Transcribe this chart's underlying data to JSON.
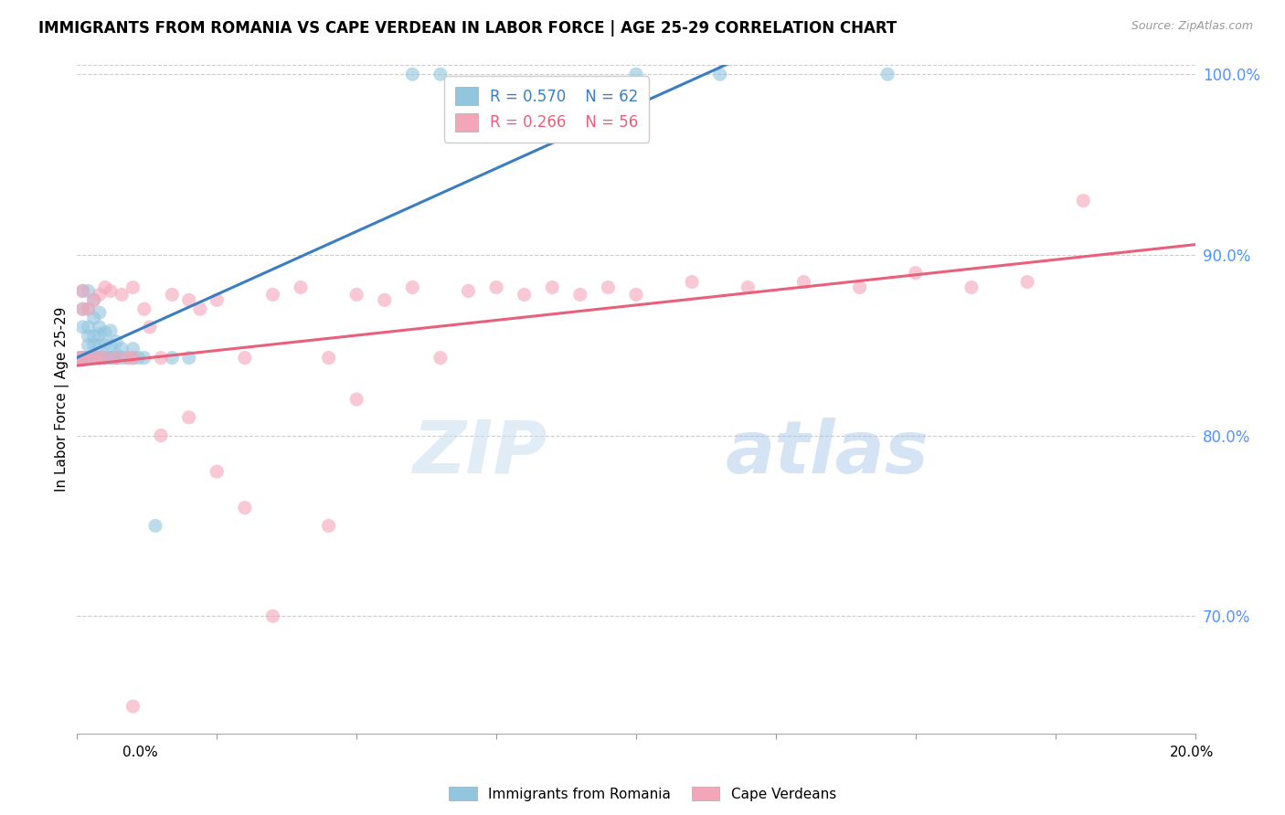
{
  "title": "IMMIGRANTS FROM ROMANIA VS CAPE VERDEAN IN LABOR FORCE | AGE 25-29 CORRELATION CHART",
  "source": "Source: ZipAtlas.com",
  "ylabel": "In Labor Force | Age 25-29",
  "xlim": [
    0.0,
    0.2
  ],
  "ylim": [
    0.635,
    1.005
  ],
  "y_tick_vals": [
    0.7,
    0.8,
    0.9,
    1.0
  ],
  "y_tick_labels": [
    "70.0%",
    "80.0%",
    "90.0%",
    "100.0%"
  ],
  "blue_color": "#92c5de",
  "pink_color": "#f4a6b8",
  "trend_blue": "#3a7ebf",
  "trend_pink": "#e8607a",
  "watermark_zip": "ZIP",
  "watermark_atlas": "atlas",
  "romania_x": [
    0.0005,
    0.0005,
    0.001,
    0.001,
    0.001,
    0.001,
    0.001,
    0.001,
    0.001,
    0.002,
    0.002,
    0.002,
    0.002,
    0.002,
    0.002,
    0.002,
    0.002,
    0.002,
    0.002,
    0.003,
    0.003,
    0.003,
    0.003,
    0.003,
    0.003,
    0.003,
    0.003,
    0.004,
    0.004,
    0.004,
    0.004,
    0.004,
    0.004,
    0.004,
    0.005,
    0.005,
    0.005,
    0.005,
    0.005,
    0.006,
    0.006,
    0.006,
    0.006,
    0.007,
    0.007,
    0.007,
    0.007,
    0.008,
    0.008,
    0.009,
    0.01,
    0.01,
    0.011,
    0.012,
    0.014,
    0.017,
    0.02,
    0.06,
    0.065,
    0.1,
    0.115,
    0.145
  ],
  "romania_y": [
    0.843,
    0.843,
    0.843,
    0.843,
    0.843,
    0.843,
    0.86,
    0.87,
    0.88,
    0.843,
    0.843,
    0.843,
    0.843,
    0.843,
    0.85,
    0.855,
    0.86,
    0.87,
    0.88,
    0.843,
    0.843,
    0.843,
    0.843,
    0.85,
    0.855,
    0.865,
    0.875,
    0.843,
    0.843,
    0.843,
    0.85,
    0.856,
    0.86,
    0.868,
    0.843,
    0.843,
    0.843,
    0.85,
    0.857,
    0.843,
    0.843,
    0.85,
    0.858,
    0.843,
    0.843,
    0.845,
    0.852,
    0.843,
    0.848,
    0.843,
    0.843,
    0.848,
    0.843,
    0.843,
    0.75,
    0.843,
    0.843,
    1.0,
    1.0,
    1.0,
    1.0,
    1.0
  ],
  "cape_x": [
    0.0005,
    0.001,
    0.001,
    0.001,
    0.002,
    0.002,
    0.003,
    0.003,
    0.004,
    0.004,
    0.005,
    0.005,
    0.006,
    0.007,
    0.008,
    0.009,
    0.01,
    0.01,
    0.012,
    0.013,
    0.015,
    0.017,
    0.02,
    0.022,
    0.025,
    0.03,
    0.035,
    0.04,
    0.045,
    0.05,
    0.055,
    0.06,
    0.065,
    0.07,
    0.075,
    0.08,
    0.085,
    0.09,
    0.095,
    0.1,
    0.11,
    0.12,
    0.13,
    0.14,
    0.15,
    0.16,
    0.17,
    0.18,
    0.015,
    0.02,
    0.025,
    0.03,
    0.035,
    0.045,
    0.01,
    0.05
  ],
  "cape_y": [
    0.843,
    0.87,
    0.843,
    0.88,
    0.87,
    0.843,
    0.875,
    0.843,
    0.878,
    0.843,
    0.882,
    0.843,
    0.88,
    0.843,
    0.878,
    0.843,
    0.882,
    0.843,
    0.87,
    0.86,
    0.843,
    0.878,
    0.875,
    0.87,
    0.875,
    0.843,
    0.878,
    0.882,
    0.843,
    0.878,
    0.875,
    0.882,
    0.843,
    0.88,
    0.882,
    0.878,
    0.882,
    0.878,
    0.882,
    0.878,
    0.885,
    0.882,
    0.885,
    0.882,
    0.89,
    0.882,
    0.885,
    0.93,
    0.8,
    0.81,
    0.78,
    0.76,
    0.7,
    0.75,
    0.65,
    0.82
  ]
}
